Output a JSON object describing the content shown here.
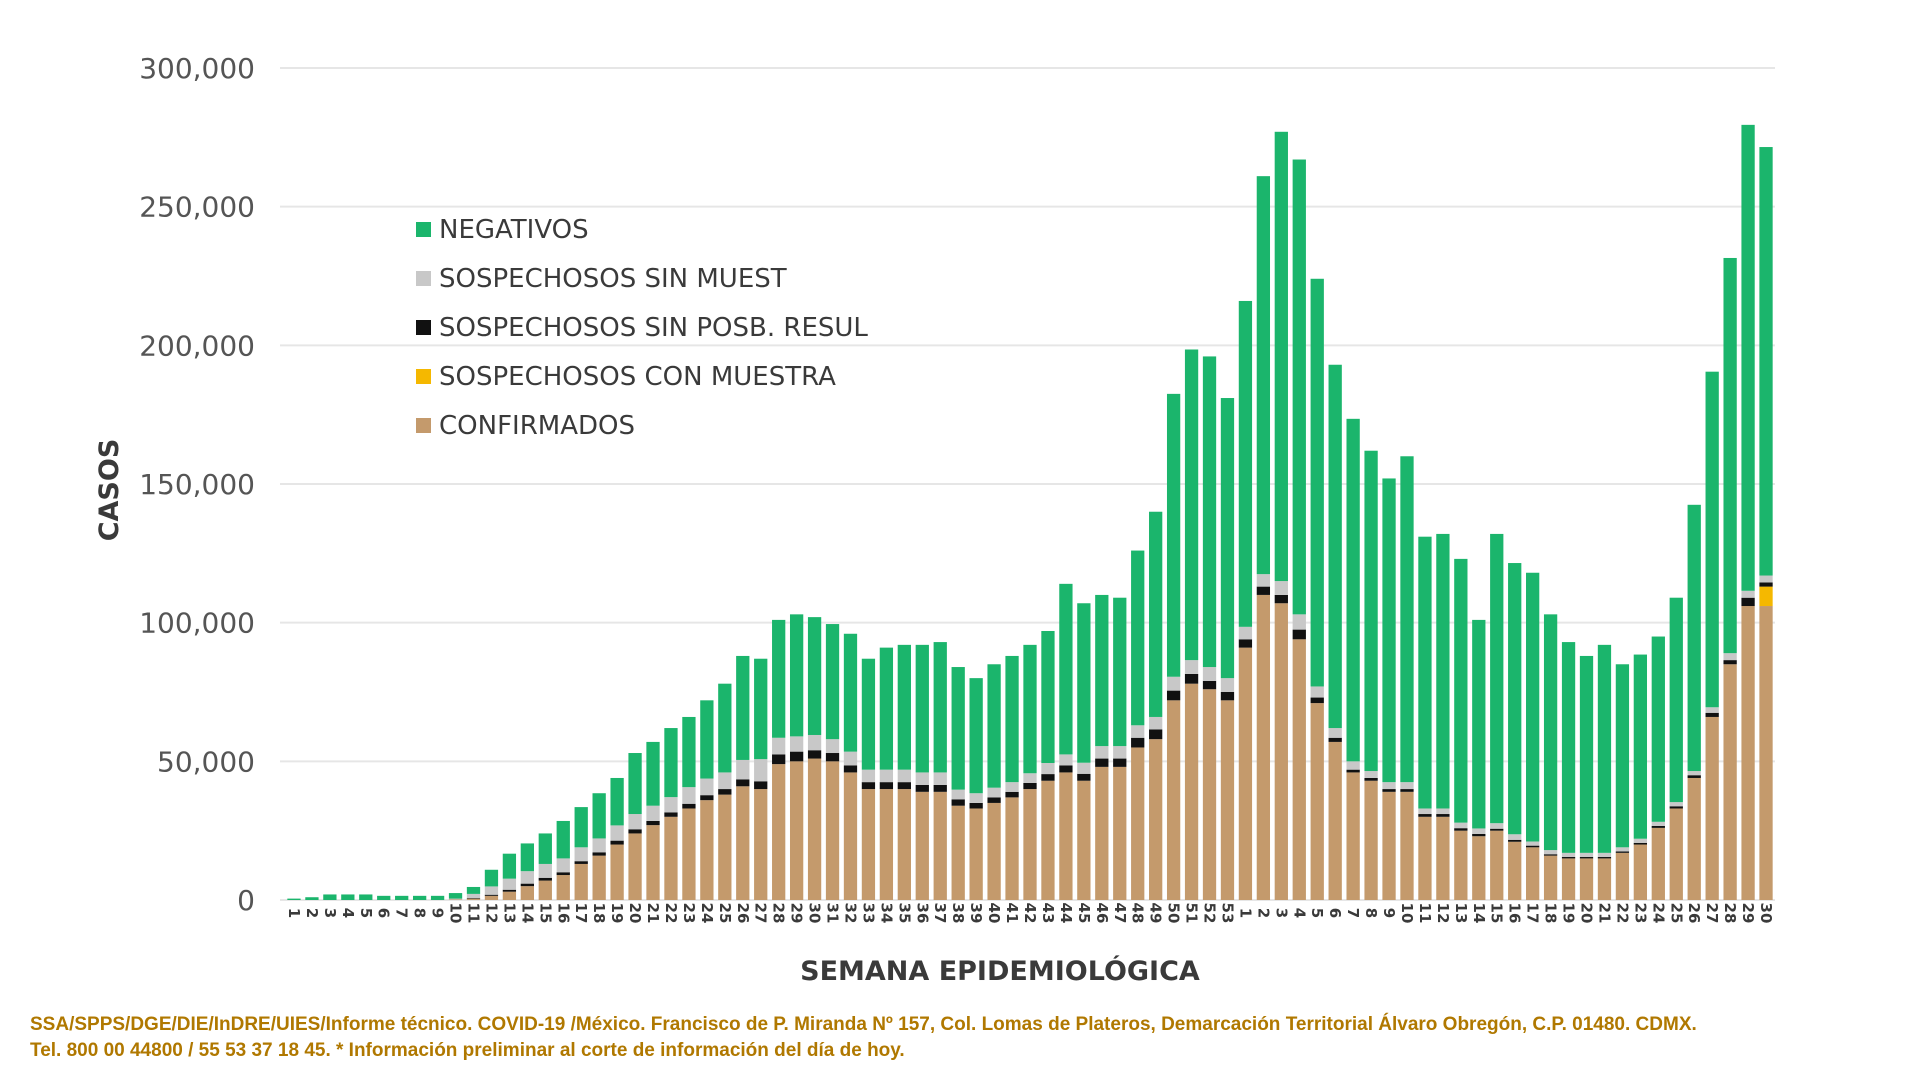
{
  "chart_data": {
    "type": "bar",
    "stacked": true,
    "title": "",
    "xlabel": "SEMANA EPIDEMIOLÓGICA",
    "ylabel": "CASOS",
    "ylim": [
      0,
      300000
    ],
    "yticks": [
      0,
      50000,
      100000,
      150000,
      200000,
      250000,
      300000
    ],
    "ytick_labels": [
      "0",
      "50,000",
      "100,000",
      "150,000",
      "200,000",
      "250,000",
      "300,000"
    ],
    "grid": true,
    "legend_position": "upper-left",
    "categories": [
      "1",
      "2",
      "3",
      "4",
      "5",
      "6",
      "7",
      "8",
      "9",
      "10",
      "11",
      "12",
      "13",
      "14",
      "15",
      "16",
      "17",
      "18",
      "19",
      "20",
      "21",
      "22",
      "23",
      "24",
      "25",
      "26",
      "27",
      "28",
      "29",
      "30",
      "31",
      "32",
      "33",
      "34",
      "35",
      "36",
      "37",
      "38",
      "39",
      "40",
      "41",
      "42",
      "43",
      "44",
      "45",
      "46",
      "47",
      "48",
      "49",
      "50",
      "51",
      "52",
      "53",
      "1",
      "2",
      "3",
      "4",
      "5",
      "6",
      "7",
      "8",
      "9",
      "10",
      "11",
      "12",
      "13",
      "14",
      "15",
      "16",
      "17",
      "18",
      "19",
      "20",
      "21",
      "22",
      "23",
      "24",
      "25",
      "26",
      "27",
      "28",
      "29",
      "30"
    ],
    "series": [
      {
        "name": "CONFIRMADOS",
        "color": "#c49a6c",
        "values": [
          0,
          0,
          0,
          0,
          0,
          0,
          0,
          0,
          0,
          200,
          500,
          1500,
          3000,
          5000,
          7000,
          9000,
          13000,
          16000,
          20000,
          24000,
          27000,
          30000,
          33000,
          36000,
          38000,
          41000,
          40000,
          49000,
          50000,
          51000,
          50000,
          46000,
          40000,
          40000,
          40000,
          39000,
          39000,
          34000,
          33000,
          35000,
          37000,
          40000,
          43000,
          46000,
          43000,
          48000,
          48000,
          55000,
          58000,
          72000,
          78000,
          76000,
          72000,
          91000,
          110000,
          107000,
          94000,
          71000,
          57000,
          46000,
          43000,
          39000,
          39000,
          30000,
          30000,
          25000,
          23000,
          25000,
          21000,
          19000,
          16000,
          15000,
          15000,
          15000,
          17000,
          20000,
          26000,
          33000,
          44000,
          66000,
          85000,
          106000,
          106000
        ]
      },
      {
        "name": "SOSPECHOSOS CON MUESTRA",
        "color": "#f5b800",
        "values": [
          0,
          0,
          0,
          0,
          0,
          0,
          0,
          0,
          0,
          0,
          0,
          0,
          0,
          0,
          0,
          0,
          0,
          0,
          0,
          0,
          0,
          0,
          0,
          0,
          0,
          0,
          0,
          0,
          0,
          0,
          0,
          0,
          0,
          0,
          0,
          0,
          0,
          0,
          0,
          0,
          0,
          0,
          0,
          0,
          0,
          0,
          0,
          0,
          0,
          0,
          0,
          0,
          0,
          0,
          0,
          0,
          0,
          0,
          0,
          0,
          0,
          0,
          0,
          0,
          0,
          0,
          0,
          0,
          0,
          0,
          0,
          0,
          0,
          0,
          0,
          0,
          0,
          0,
          0,
          0,
          0,
          0,
          7000
        ]
      },
      {
        "name": "SOSPECHOSOS SIN POSB. RESUL",
        "color": "#111111",
        "values": [
          0,
          0,
          0,
          0,
          0,
          0,
          0,
          0,
          0,
          0,
          200,
          400,
          700,
          900,
          1000,
          1000,
          1000,
          1200,
          1400,
          1500,
          1500,
          1600,
          1700,
          1800,
          2000,
          2500,
          2800,
          3500,
          3500,
          3000,
          3000,
          2500,
          2500,
          2500,
          2500,
          2500,
          2500,
          2300,
          2000,
          2000,
          2000,
          2200,
          2400,
          2500,
          2500,
          3000,
          3000,
          3500,
          3500,
          3500,
          3500,
          3000,
          3000,
          3000,
          3000,
          3000,
          3500,
          2000,
          1500,
          1000,
          1000,
          1000,
          1000,
          1000,
          1000,
          900,
          800,
          700,
          700,
          600,
          500,
          500,
          500,
          500,
          500,
          600,
          700,
          800,
          1000,
          1500,
          1500,
          3000,
          1500
        ]
      },
      {
        "name": "SOSPECHOSOS SIN MUEST",
        "color": "#c8c8c8",
        "values": [
          0,
          0,
          0,
          0,
          0,
          0,
          0,
          0,
          0,
          300,
          1500,
          3000,
          4000,
          4500,
          5000,
          5000,
          5000,
          5000,
          5500,
          5500,
          5500,
          5500,
          6000,
          6000,
          6000,
          7000,
          8000,
          6000,
          5500,
          5500,
          5000,
          5000,
          4500,
          4500,
          4500,
          4500,
          4500,
          3500,
          3500,
          3500,
          3500,
          3500,
          4000,
          4000,
          4000,
          4500,
          4500,
          4500,
          4500,
          5000,
          5000,
          5000,
          5000,
          4500,
          4500,
          5000,
          5500,
          4000,
          3500,
          3000,
          2500,
          2500,
          2500,
          2000,
          2000,
          2000,
          2000,
          2000,
          2000,
          1500,
          1500,
          1500,
          1500,
          1500,
          1500,
          1500,
          1500,
          1500,
          1500,
          2000,
          2500,
          2500,
          2500
        ]
      },
      {
        "name": "NEGATIVOS",
        "color": "#1bb56c",
        "values": [
          500,
          1000,
          2000,
          2000,
          2000,
          1500,
          1500,
          1500,
          1500,
          2000,
          2500,
          6000,
          9000,
          10000,
          11000,
          13500,
          14500,
          16300,
          17100,
          22000,
          23000,
          24900,
          25300,
          28200,
          32000,
          37500,
          36200,
          42500,
          44000,
          42500,
          41500,
          42500,
          40000,
          44000,
          45000,
          46000,
          47000,
          44200,
          41500,
          44500,
          45500,
          46300,
          47600,
          61500,
          57500,
          54500,
          53500,
          63000,
          74000,
          102000,
          112000,
          112000,
          101000,
          117500,
          143500,
          162000,
          164000,
          147000,
          131000,
          123500,
          115500,
          109500,
          117500,
          98000,
          99000,
          95100,
          75200,
          104300,
          97800,
          96900,
          85000,
          76000,
          71000,
          75000,
          66000,
          66400,
          66800,
          73700,
          96000,
          121000,
          142500,
          168000,
          154500
        ]
      }
    ]
  },
  "footer": {
    "line1": "SSA/SPPS/DGE/DIE/InDRE/UIES/Informe técnico. COVID-19 /México. Francisco de P. Miranda Nº 157, Col. Lomas de Plateros, Demarcación Territorial Álvaro Obregón, C.P. 01480. CDMX.",
    "line2": "Tel. 800 00 44800 / 55 53 37 18 45. * Información preliminar al corte de información del día de hoy."
  }
}
